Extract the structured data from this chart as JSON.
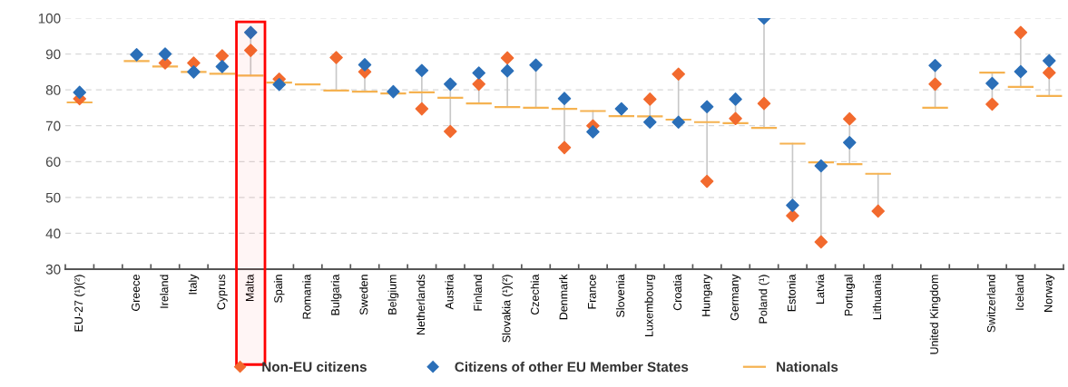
{
  "chart_data": {
    "type": "scatter",
    "categories": [
      "EU-27 (¹)(²)",
      null,
      "Greece",
      "Ireland",
      "Italy",
      "Cyprus",
      "Malta",
      "Spain",
      "Romania",
      "Bulgaria",
      "Sweden",
      "Belgium",
      "Netherlands",
      "Austria",
      "Finland",
      "Slovakia (¹)(²)",
      "Czechia",
      "Denmark",
      "France",
      "Slovenia",
      "Luxembourg",
      "Croatia",
      "Hungary",
      "Germany",
      "Poland (¹)",
      "Estonia",
      "Latvia",
      "Portugal",
      "Lithuania",
      null,
      "United Kingdom",
      null,
      "Switzerland",
      "Iceland",
      "Norway"
    ],
    "series": [
      {
        "name": "Non-EU citizens",
        "color": "#f26a2e",
        "marker": "diamond",
        "values": [
          77.5,
          null,
          null,
          87.5,
          87.5,
          89.5,
          91,
          83,
          null,
          89,
          85,
          null,
          74.7,
          68.4,
          81.6,
          88.9,
          null,
          63.9,
          70,
          null,
          77.4,
          84.4,
          54.5,
          72,
          76.2,
          44.9,
          37.6,
          71.9,
          46.2,
          null,
          81.6,
          null,
          76,
          96,
          84.8
        ]
      },
      {
        "name": "Citizens of other EU Member States",
        "color": "#2b6fb8",
        "marker": "diamond",
        "values": [
          79.3,
          null,
          89.8,
          90,
          85,
          86.5,
          96,
          81.5,
          null,
          null,
          87,
          79.5,
          85.4,
          81.6,
          84.7,
          85.3,
          86.9,
          77.6,
          68.3,
          74.7,
          71,
          71,
          75.3,
          77.4,
          100,
          47.8,
          58.8,
          65.3,
          null,
          null,
          86.8,
          null,
          81.8,
          85.1,
          88.1
        ]
      },
      {
        "name": "Nationals",
        "color": "#f5b251",
        "type": "bar",
        "base": [
          76.5,
          null,
          88,
          86.5,
          85,
          84.5,
          84,
          82,
          81.5,
          79.8,
          79.5,
          79,
          79.3,
          77.8,
          76.2,
          75.2,
          75,
          74.7,
          74.1,
          72.7,
          72.6,
          71.7,
          71,
          70.7,
          69.4,
          65,
          59.8,
          59.3,
          56.6,
          null,
          75,
          null,
          84.8,
          80.8,
          78.3
        ],
        "values": [
          0,
          null,
          0,
          0,
          0,
          0,
          0,
          0,
          0,
          0,
          0,
          0,
          0,
          0,
          0,
          0,
          0,
          0,
          0,
          0,
          0,
          0,
          0,
          0,
          0,
          0,
          0,
          0,
          0,
          null,
          0,
          null,
          0,
          0,
          0
        ]
      }
    ],
    "ylim": [
      30,
      100
    ],
    "yticks": [
      30,
      40,
      50,
      60,
      70,
      80,
      90,
      100
    ],
    "grid": "y",
    "legend": "bottom",
    "bands": [
      {
        "axis": "x",
        "from": "Malta",
        "to": "Malta",
        "color": "#ff0000"
      }
    ]
  }
}
